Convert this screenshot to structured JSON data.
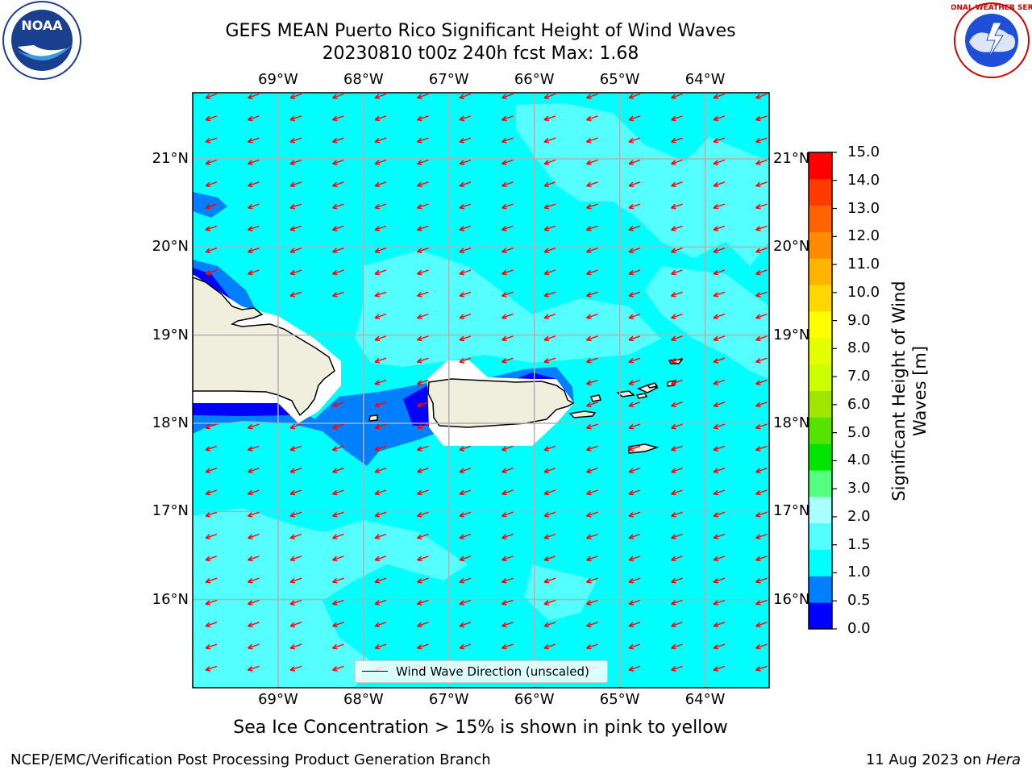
{
  "title": {
    "line1": "GEFS MEAN Puerto Rico Significant Height of Wind Waves",
    "line2": "20230810 t00z 240h fcst   Max: 1.68"
  },
  "map": {
    "lon_ticks": [
      "69°W",
      "68°W",
      "67°W",
      "66°W",
      "65°W",
      "64°W"
    ],
    "lat_ticks": [
      "21°N",
      "20°N",
      "19°N",
      "18°N",
      "17°N",
      "16°N"
    ],
    "extent": {
      "lon_min": -70.0,
      "lon_max": -63.25,
      "lat_min": 15.0,
      "lat_max": 21.75
    },
    "legend_label": "Wind Wave Direction (unscaled)",
    "arrow_color": "#ff0000",
    "land_color": "#f0eedc",
    "wave_direction": "toward west-southwest"
  },
  "colorbar": {
    "label": "Significant Height of Wind Waves [m]",
    "ticks": [
      "15.0",
      "14.0",
      "13.0",
      "12.0",
      "11.0",
      "10.0",
      "9.0",
      "8.0",
      "7.0",
      "6.0",
      "5.0",
      "4.0",
      "3.0",
      "2.0",
      "1.5",
      "1.0",
      "0.5",
      "0.0"
    ],
    "colors": [
      "#0000ff",
      "#0080ff",
      "#00ffff",
      "#55ffff",
      "#aaffff",
      "#55ff80",
      "#00e400",
      "#55e400",
      "#a0e600",
      "#ccff00",
      "#e6ff00",
      "#ffff00",
      "#ffd700",
      "#ffb400",
      "#ff8c00",
      "#ff6400",
      "#ff3c00",
      "#ff0000"
    ]
  },
  "footnote": "Sea Ice Concentration > 15% is shown in pink to yellow",
  "credit_left": "NCEP/EMC/Verification Post Processing Product Generation Branch",
  "credit_right_prefix": "11 Aug 2023 on ",
  "credit_right_host": "Hera",
  "logos": {
    "left": "NOAA",
    "right": "NATIONAL WEATHER SERVICE"
  }
}
